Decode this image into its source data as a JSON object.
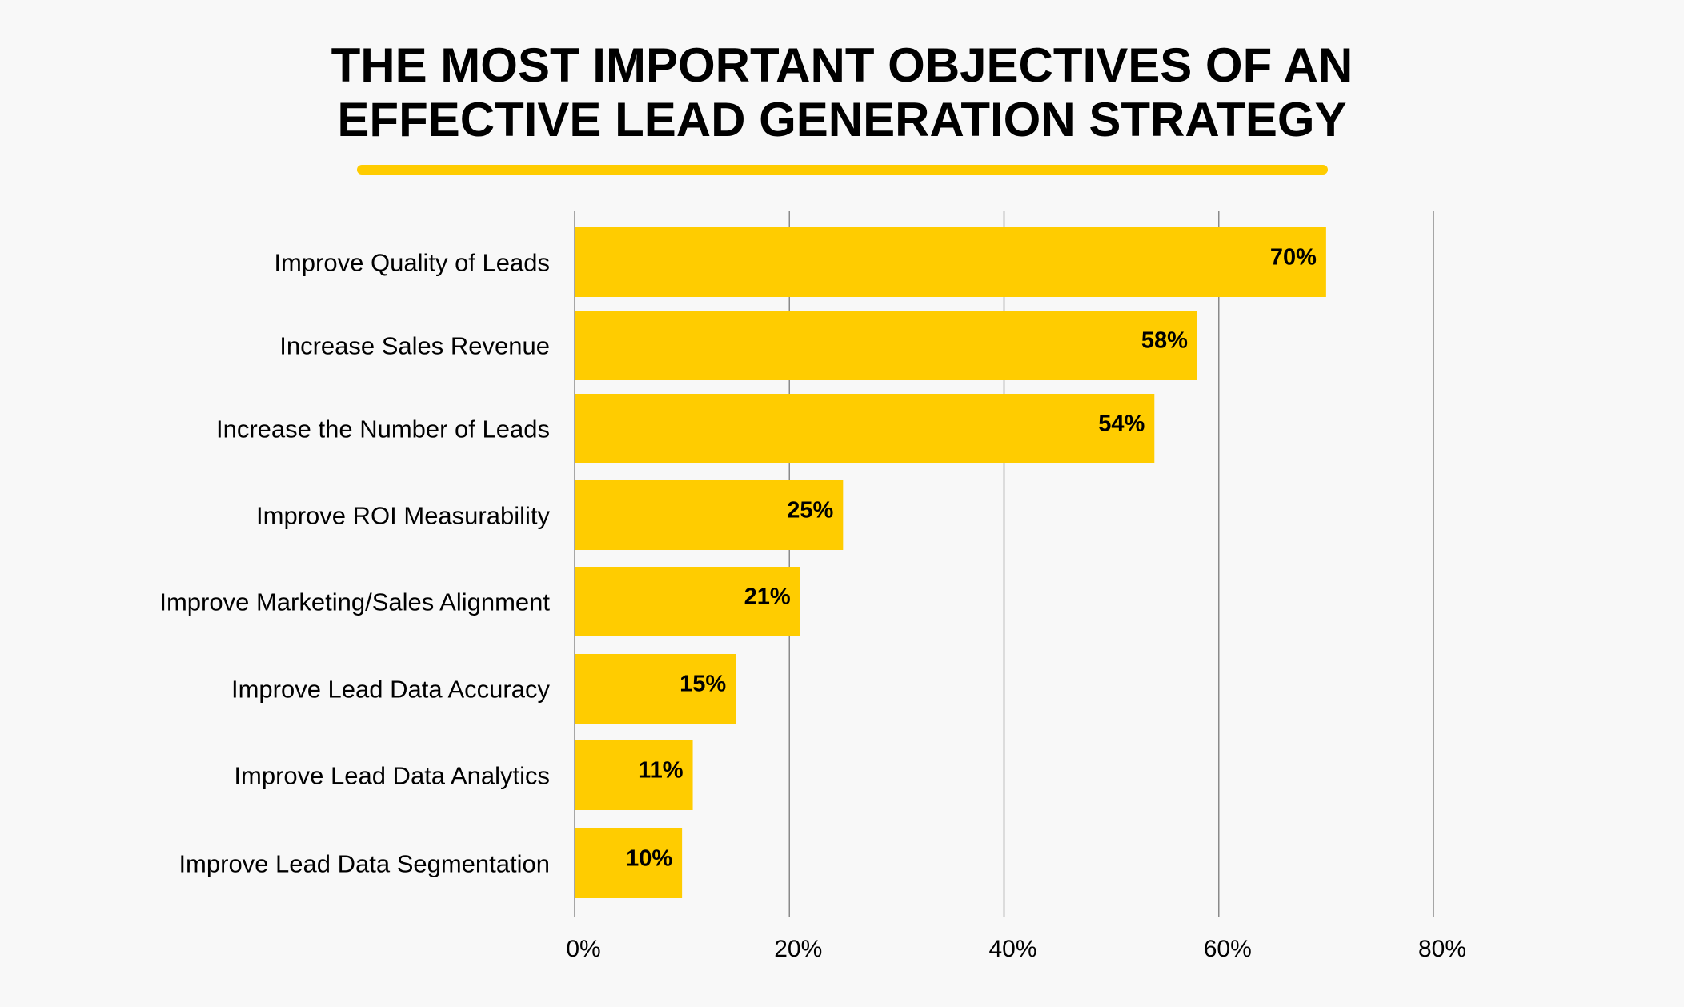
{
  "chart_data": {
    "type": "bar",
    "orientation": "horizontal",
    "title_lines": [
      "THE MOST IMPORTANT OBJECTIVES OF AN",
      "EFFECTIVE LEAD GENERATION STRATEGY"
    ],
    "categories": [
      "Improve Quality of Leads",
      "Increase Sales Revenue",
      "Increase the Number of Leads",
      "Improve ROI Measurability",
      "Improve Marketing/Sales Alignment",
      "Improve Lead Data Accuracy",
      "Improve Lead Data Analytics",
      "Improve Lead Data Segmentation"
    ],
    "values": [
      70,
      58,
      54,
      25,
      21,
      15,
      11,
      10
    ],
    "value_labels": [
      "70%",
      "58%",
      "54%",
      "25%",
      "21%",
      "15%",
      "11%",
      "10%"
    ],
    "xlim": [
      0,
      80
    ],
    "x_ticks": [
      0,
      20,
      40,
      60,
      80
    ],
    "x_tick_labels": [
      "0%",
      "20%",
      "40%",
      "60%",
      "80%"
    ],
    "grid": true,
    "bar_color": "#ffcc00",
    "accent_color": "#ffcc00",
    "grid_color": "#8a8a8a",
    "background_color": "#f8f8f8"
  }
}
